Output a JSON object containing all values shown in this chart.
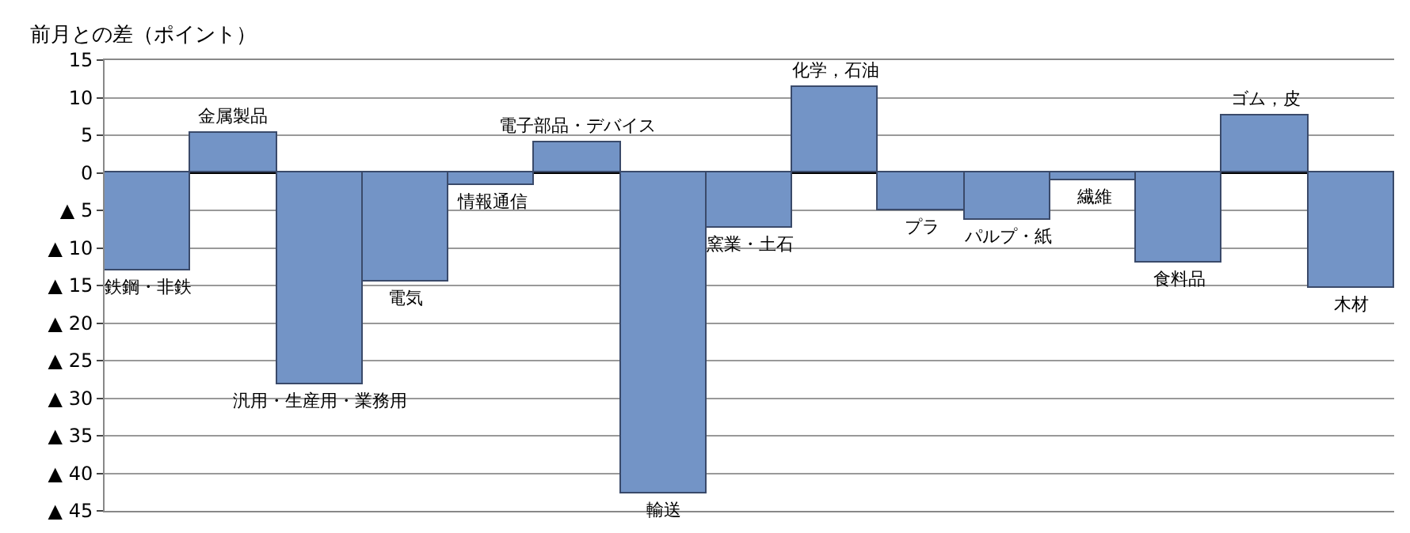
{
  "chart_data": {
    "type": "bar",
    "ylabel": "前月との差（ポイント）",
    "categories": [
      "鉄鋼・非鉄",
      "金属製品",
      "汎用・生産用・業務用",
      "電気",
      "情報通信",
      "電子部品・デバイス",
      "輸送",
      "窯業・土石",
      "化学，石油",
      "プラ",
      "パルプ・紙",
      "繊維",
      "食料品",
      "ゴム，皮",
      "木材"
    ],
    "values": [
      -13,
      5.3,
      -28.2,
      -14.5,
      -1.7,
      4,
      -42.7,
      -7.4,
      11.4,
      -5,
      -6.3,
      -1,
      -12,
      7.6,
      -15.4
    ],
    "color": "#7394c6",
    "ylim": [
      -45,
      15
    ],
    "yticks": [
      15,
      10,
      5,
      0,
      {
        "value": -5,
        "label": "▲ 5"
      },
      {
        "value": -10,
        "label": "▲ 10"
      },
      {
        "value": -15,
        "label": "▲ 15"
      },
      {
        "value": -20,
        "label": "▲ 20"
      },
      {
        "value": -25,
        "label": "▲ 25"
      },
      {
        "value": -30,
        "label": "▲ 30"
      },
      {
        "value": -35,
        "label": "▲ 35"
      },
      {
        "value": -40,
        "label": "▲ 40"
      },
      {
        "value": -45,
        "label": "▲ 45"
      }
    ],
    "grid": "y",
    "tick_labels": "y"
  }
}
